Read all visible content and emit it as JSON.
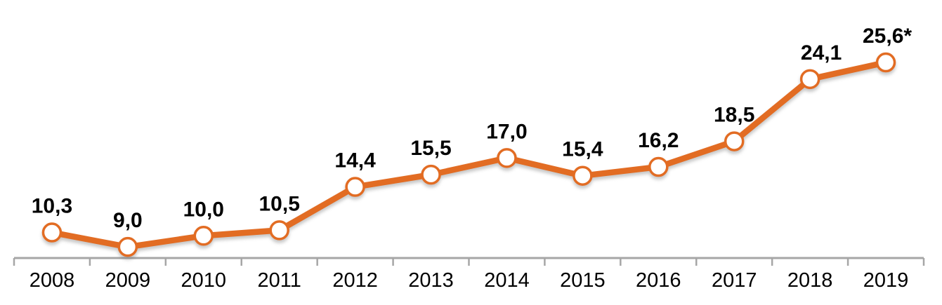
{
  "chart_data": {
    "type": "line",
    "title": "",
    "xlabel": "",
    "ylabel": "",
    "categories": [
      "2008",
      "2009",
      "2010",
      "2011",
      "2012",
      "2013",
      "2014",
      "2015",
      "2016",
      "2017",
      "2018",
      "2019"
    ],
    "series": [
      {
        "name": "value-series",
        "values": [
          10.3,
          9.0,
          10.0,
          10.5,
          14.4,
          15.5,
          17.0,
          15.4,
          16.2,
          18.5,
          24.1,
          25.6
        ]
      }
    ],
    "point_labels": [
      "10,3",
      "9,0",
      "10,0",
      "10,5",
      "14,4",
      "15,5",
      "17,0",
      "15,4",
      "16,2",
      "18,5",
      "24,1",
      "25,6*"
    ],
    "decimal_separator": ",",
    "ylim": [
      8,
      27
    ],
    "grid": false,
    "legend": false,
    "y_axis_visible": false,
    "x_axis_visible": true,
    "data_label_position": "above-points",
    "tick_marks": "category-boundaries",
    "colors": {
      "line": "#E26C23",
      "marker_fill": "#FFFFFF",
      "marker_ring": "#E26C23",
      "axis": "#A6A6A6",
      "data_label_text": "#000000",
      "axis_label_text": "#000000",
      "background": "#FFFFFF"
    }
  }
}
